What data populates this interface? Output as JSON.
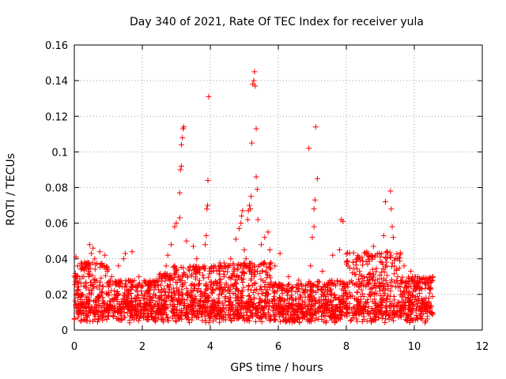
{
  "chart_data": {
    "type": "scatter",
    "title": "Day 340 of 2021, Rate Of TEC Index for receiver yula",
    "xlabel": "GPS time / hours",
    "ylabel": "ROTI / TECUs",
    "xlim": [
      0,
      12
    ],
    "ylim": [
      0,
      0.16
    ],
    "x_ticks": [
      0,
      2,
      4,
      6,
      8,
      10,
      12
    ],
    "x_tick_labels": [
      "0",
      "2",
      "4",
      "6",
      "8",
      "10",
      "12"
    ],
    "y_ticks": [
      0,
      0.02,
      0.04,
      0.06,
      0.08,
      0.1,
      0.12,
      0.14,
      0.16
    ],
    "y_tick_labels": [
      "0",
      "0.02",
      "0.04",
      "0.06",
      "0.08",
      "0.1",
      "0.12",
      "0.14",
      "0.16"
    ],
    "grid": true,
    "marker": "plus",
    "marker_color": "#ff0000",
    "series": [
      {
        "name": "ROTI",
        "points": [
          [
            0.05,
            0.041
          ],
          [
            0.1,
            0.036
          ],
          [
            0.2,
            0.034
          ],
          [
            0.3,
            0.038
          ],
          [
            0.45,
            0.048
          ],
          [
            0.5,
            0.043
          ],
          [
            0.55,
            0.046
          ],
          [
            0.6,
            0.04
          ],
          [
            0.75,
            0.044
          ],
          [
            0.9,
            0.042
          ],
          [
            1.0,
            0.034
          ],
          [
            1.1,
            0.03
          ],
          [
            1.3,
            0.036
          ],
          [
            1.45,
            0.04
          ],
          [
            1.5,
            0.043
          ],
          [
            1.7,
            0.044
          ],
          [
            1.9,
            0.03
          ],
          [
            2.1,
            0.026
          ],
          [
            2.4,
            0.028
          ],
          [
            2.7,
            0.036
          ],
          [
            2.75,
            0.042
          ],
          [
            2.85,
            0.048
          ],
          [
            2.95,
            0.058
          ],
          [
            3.0,
            0.06
          ],
          [
            3.1,
            0.063
          ],
          [
            3.1,
            0.077
          ],
          [
            3.12,
            0.09
          ],
          [
            3.15,
            0.092
          ],
          [
            3.15,
            0.104
          ],
          [
            3.18,
            0.108
          ],
          [
            3.2,
            0.113
          ],
          [
            3.22,
            0.114
          ],
          [
            3.3,
            0.05
          ],
          [
            3.5,
            0.047
          ],
          [
            3.6,
            0.04
          ],
          [
            3.8,
            0.035
          ],
          [
            3.85,
            0.048
          ],
          [
            3.88,
            0.053
          ],
          [
            3.9,
            0.068
          ],
          [
            3.92,
            0.07
          ],
          [
            3.93,
            0.084
          ],
          [
            3.95,
            0.131
          ],
          [
            4.1,
            0.036
          ],
          [
            4.4,
            0.03
          ],
          [
            4.6,
            0.04
          ],
          [
            4.75,
            0.051
          ],
          [
            4.85,
            0.057
          ],
          [
            4.9,
            0.06
          ],
          [
            4.92,
            0.064
          ],
          [
            4.95,
            0.067
          ],
          [
            5.0,
            0.045
          ],
          [
            5.05,
            0.04
          ],
          [
            5.1,
            0.062
          ],
          [
            5.12,
            0.067
          ],
          [
            5.15,
            0.07
          ],
          [
            5.18,
            0.068
          ],
          [
            5.2,
            0.075
          ],
          [
            5.22,
            0.105
          ],
          [
            5.25,
            0.138
          ],
          [
            5.28,
            0.14
          ],
          [
            5.3,
            0.145
          ],
          [
            5.32,
            0.137
          ],
          [
            5.35,
            0.113
          ],
          [
            5.35,
            0.086
          ],
          [
            5.38,
            0.079
          ],
          [
            5.4,
            0.062
          ],
          [
            5.5,
            0.048
          ],
          [
            5.6,
            0.052
          ],
          [
            5.7,
            0.055
          ],
          [
            5.75,
            0.045
          ],
          [
            5.9,
            0.036
          ],
          [
            6.05,
            0.043
          ],
          [
            6.3,
            0.03
          ],
          [
            6.6,
            0.028
          ],
          [
            6.8,
            0.025
          ],
          [
            6.9,
            0.102
          ],
          [
            6.95,
            0.036
          ],
          [
            7.0,
            0.052
          ],
          [
            7.05,
            0.058
          ],
          [
            7.05,
            0.068
          ],
          [
            7.08,
            0.073
          ],
          [
            7.1,
            0.114
          ],
          [
            7.15,
            0.085
          ],
          [
            7.3,
            0.033
          ],
          [
            7.6,
            0.042
          ],
          [
            7.8,
            0.045
          ],
          [
            7.85,
            0.062
          ],
          [
            7.9,
            0.061
          ],
          [
            8.05,
            0.036
          ],
          [
            8.2,
            0.038
          ],
          [
            8.4,
            0.04
          ],
          [
            8.6,
            0.044
          ],
          [
            8.8,
            0.047
          ],
          [
            9.0,
            0.041
          ],
          [
            9.1,
            0.053
          ],
          [
            9.15,
            0.072
          ],
          [
            9.2,
            0.044
          ],
          [
            9.3,
            0.078
          ],
          [
            9.32,
            0.068
          ],
          [
            9.35,
            0.058
          ],
          [
            9.38,
            0.052
          ],
          [
            9.5,
            0.04
          ],
          [
            9.7,
            0.036
          ],
          [
            9.9,
            0.033
          ],
          [
            10.1,
            0.03
          ],
          [
            10.3,
            0.027
          ],
          [
            10.45,
            0.023
          ]
        ]
      }
    ]
  }
}
